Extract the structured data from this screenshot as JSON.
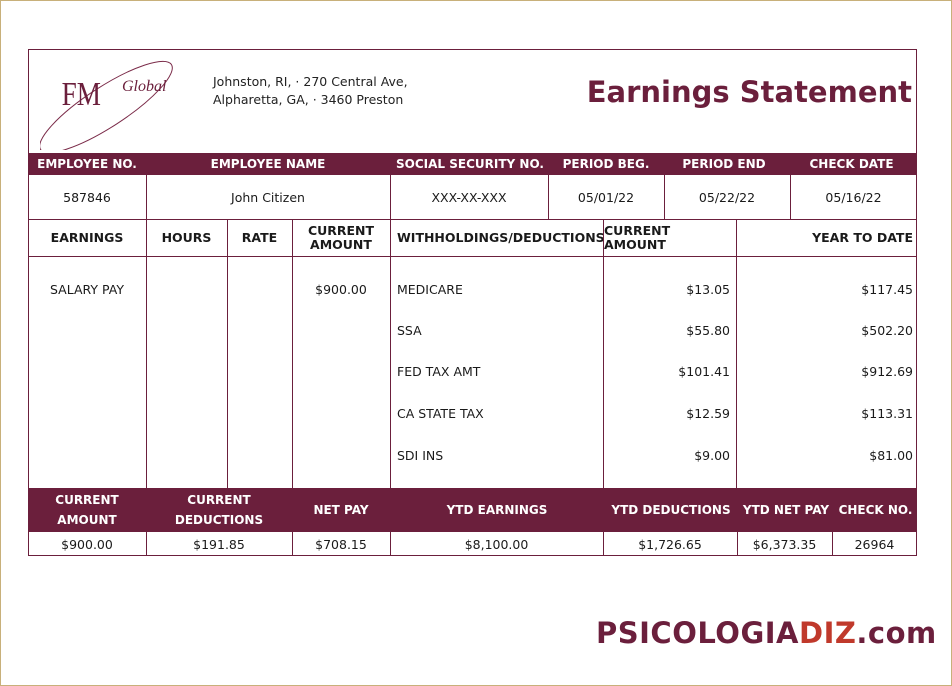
{
  "company": {
    "logo_text": "FM Global",
    "address_line1": "Johnston, RI, · 270 Central Ave,",
    "address_line2": "Alpharetta, GA, · 3460 Preston"
  },
  "title": "Earnings Statement",
  "employee_header": {
    "labels": [
      "EMPLOYEE NO.",
      "EMPLOYEE NAME",
      "SOCIAL SECURITY NO.",
      "PERIOD BEG.",
      "PERIOD END",
      "CHECK DATE"
    ],
    "values": [
      "587846",
      "John Citizen",
      "XXX-XX-XXX",
      "05/01/22",
      "05/22/22",
      "05/16/22"
    ]
  },
  "columns": {
    "earnings": "EARNINGS",
    "hours": "HOURS",
    "rate": "RATE",
    "current_amount_line1": "CURRENT",
    "current_amount_line2": "AMOUNT",
    "withholdings": "WITHHOLDINGS/DEDUCTIONS",
    "current_amount": "CURRENT AMOUNT",
    "ytd": "YEAR TO DATE"
  },
  "earnings_rows": [
    {
      "name": "SALARY PAY",
      "hours": "",
      "rate": "",
      "amount": "$900.00"
    }
  ],
  "deductions": [
    {
      "name": "MEDICARE",
      "current": "$13.05",
      "ytd": "$117.45"
    },
    {
      "name": "SSA",
      "current": "$55.80",
      "ytd": "$502.20"
    },
    {
      "name": "FED TAX AMT",
      "current": "$101.41",
      "ytd": "$912.69"
    },
    {
      "name": "CA STATE TAX",
      "current": "$12.59",
      "ytd": "$113.31"
    },
    {
      "name": "SDI INS",
      "current": "$9.00",
      "ytd": "$81.00"
    }
  ],
  "summary": {
    "labels": {
      "current_amount_1": "CURRENT",
      "current_amount_2": "AMOUNT",
      "current_deductions_1": "CURRENT",
      "current_deductions_2": "DEDUCTIONS",
      "net_pay": "NET PAY",
      "ytd_earnings": "YTD EARNINGS",
      "ytd_deductions": "YTD DEDUCTIONS",
      "ytd_net_pay": "YTD NET PAY",
      "check_no": "CHECK NO."
    },
    "values": [
      "$900.00",
      "$191.85",
      "$708.15",
      "$8,100.00",
      "$1,726.65",
      "$6,373.35",
      "26964"
    ]
  },
  "watermark": {
    "part1": "PSICOLOGIA",
    "part2": "DIZ",
    "part3": ".com"
  },
  "colors": {
    "brand": "#6b1f3c",
    "watermark_highlight": "#c0392b"
  }
}
